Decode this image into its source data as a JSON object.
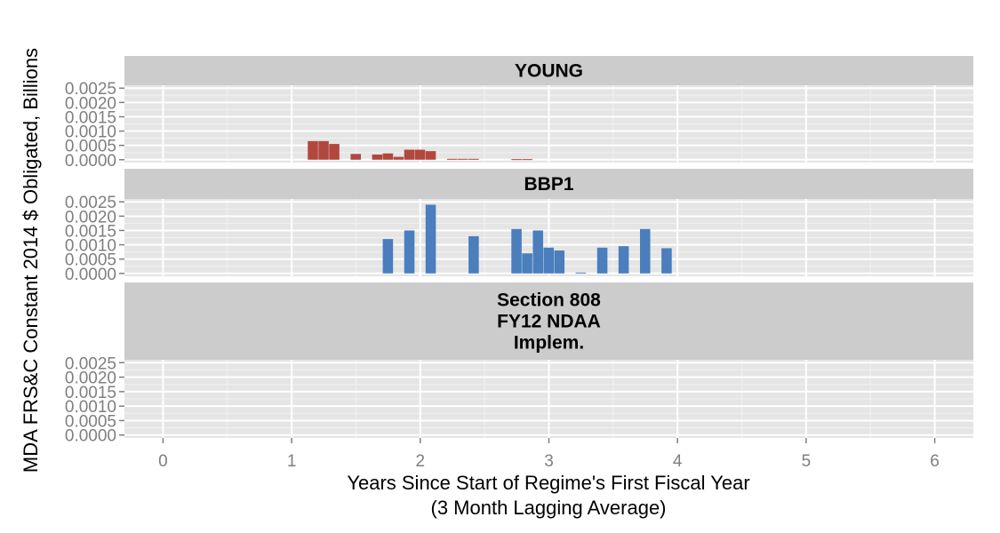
{
  "chart_data": {
    "type": "bar",
    "xlabel": "Years Since Start of Regime's First Fiscal Year",
    "xlabel_sub": "(3 Month Lagging Average)",
    "ylabel": "MDA FRS&C Constant 2014 $ Obligated, Billions",
    "xlim": [
      -0.3,
      6.3
    ],
    "ylim": [
      -0.0001,
      0.0026
    ],
    "x_ticks": [
      "0",
      "1",
      "2",
      "3",
      "4",
      "5",
      "6"
    ],
    "y_ticks": [
      "0.0000",
      "0.0005",
      "0.0010",
      "0.0015",
      "0.0020",
      "0.0025"
    ],
    "bar_width": 0.0833,
    "grid": true,
    "panels": [
      {
        "name": "YOUNG",
        "strip_lines": [
          "YOUNG"
        ],
        "color": "#b2473e",
        "x": [
          1.167,
          1.25,
          1.333,
          1.5,
          1.667,
          1.75,
          1.833,
          1.917,
          2.0,
          2.083,
          2.25,
          2.333,
          2.417,
          2.75,
          2.833
        ],
        "values": [
          0.00065,
          0.00065,
          0.00055,
          0.0002,
          0.00018,
          0.00022,
          0.0001,
          0.00035,
          0.00035,
          0.0003,
          3e-05,
          3e-05,
          3e-05,
          2e-05,
          2e-05
        ]
      },
      {
        "name": "BBP1",
        "strip_lines": [
          "BBP1"
        ],
        "color": "#4a7ebd",
        "x": [
          1.75,
          1.917,
          2.083,
          2.417,
          2.75,
          2.833,
          2.917,
          3.0,
          3.083,
          3.25,
          3.417,
          3.583,
          3.75,
          3.917
        ],
        "values": [
          0.0012,
          0.0015,
          0.0024,
          0.0013,
          0.00155,
          0.0007,
          0.0015,
          0.0009,
          0.0008,
          3e-05,
          0.0009,
          0.00095,
          0.00155,
          0.00088
        ]
      },
      {
        "name": "Section 808 FY12 NDAA Implem.",
        "strip_lines": [
          "Section 808",
          "FY12 NDAA",
          "Implem."
        ],
        "color": "#4a7ebd",
        "x": [],
        "values": []
      }
    ]
  }
}
